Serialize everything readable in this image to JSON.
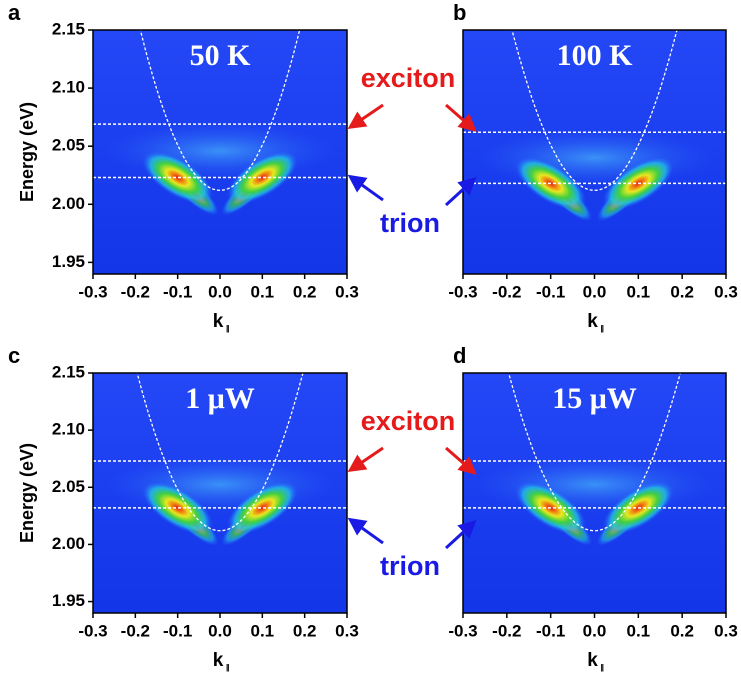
{
  "chart_data": [
    {
      "type": "heatmap",
      "panel_label": "a",
      "annotation": "50 K",
      "xlabel": "k",
      "xlabel_subscript": "||",
      "ylabel": "Energy (eV)",
      "xlim": [
        -0.3,
        0.3
      ],
      "xticks": [
        -0.3,
        -0.2,
        -0.1,
        {
          "value": 0,
          "label": "0.0"
        },
        0.1,
        0.2,
        0.3
      ],
      "ylim": [
        1.94,
        2.15
      ],
      "yticks": [
        1.95,
        {
          "value": 2,
          "label": "2.00"
        },
        2.05,
        {
          "value": 2.1,
          "label": "2.10"
        },
        2.15
      ],
      "exciton_energy": 2.069,
      "trion_energy": 2.023,
      "dispersion": {
        "vertex": 2.012,
        "coefficient": 3.9
      }
    },
    {
      "type": "heatmap",
      "panel_label": "b",
      "annotation": "100 K",
      "xlabel": "k",
      "xlabel_subscript": "||",
      "xlim": [
        -0.3,
        0.3
      ],
      "xticks": [
        -0.3,
        -0.2,
        -0.1,
        {
          "value": 0,
          "label": "0.0"
        },
        0.1,
        0.2,
        0.3
      ],
      "ylim": [
        1.94,
        2.15
      ],
      "exciton_energy": 2.062,
      "trion_energy": 2.018,
      "dispersion": {
        "vertex": 2.012,
        "coefficient": 3.9
      }
    },
    {
      "type": "heatmap",
      "panel_label": "c",
      "annotation": "1 μW",
      "xlabel": "k",
      "xlabel_subscript": "||",
      "ylabel": "Energy (eV)",
      "xlim": [
        -0.3,
        0.3
      ],
      "xticks": [
        -0.3,
        -0.2,
        -0.1,
        {
          "value": 0,
          "label": "0.0"
        },
        0.1,
        0.2,
        0.3
      ],
      "ylim": [
        1.94,
        2.15
      ],
      "yticks": [
        1.95,
        {
          "value": 2,
          "label": "2.00"
        },
        2.05,
        {
          "value": 2.1,
          "label": "2.10"
        },
        2.15
      ],
      "exciton_energy": 2.073,
      "trion_energy": 2.032,
      "dispersion": {
        "vertex": 2.012,
        "coefficient": 3.6
      }
    },
    {
      "type": "heatmap",
      "panel_label": "d",
      "annotation": "15 μW",
      "xlabel": "k",
      "xlabel_subscript": "||",
      "xlim": [
        -0.3,
        0.3
      ],
      "xticks": [
        -0.3,
        -0.2,
        -0.1,
        {
          "value": 0,
          "label": "0.0"
        },
        0.1,
        0.2,
        0.3
      ],
      "ylim": [
        1.94,
        2.15
      ],
      "exciton_energy": 2.073,
      "trion_energy": 2.032,
      "dispersion": {
        "vertex": 2.012,
        "coefficient": 3.6
      }
    }
  ],
  "side_labels": [
    {
      "exciton": "exciton",
      "trion": "trion"
    },
    {
      "exciton": "exciton",
      "trion": "trion"
    }
  ]
}
